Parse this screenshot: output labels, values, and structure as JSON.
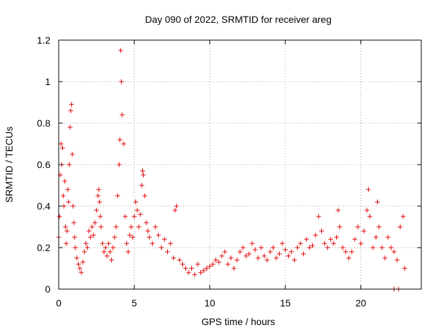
{
  "chart_data": {
    "type": "scatter",
    "title": "Day 090 of 2022, SRMTID for receiver areg",
    "xlabel": "GPS time / hours",
    "ylabel": "SRMTID / TECUs",
    "xlim": [
      0,
      24
    ],
    "ylim": [
      0,
      1.2
    ],
    "grid": true,
    "x_ticks": [
      0,
      5,
      10,
      15,
      20
    ],
    "x_tick_labels": [
      "0",
      "5",
      "10",
      "15",
      "20"
    ],
    "y_ticks": [
      0,
      0.2,
      0.4,
      0.6,
      0.8,
      1.0,
      1.2
    ],
    "y_tick_labels": [
      "0",
      "0.2",
      "0.4",
      "0.6",
      "0.8",
      "1",
      "1.2"
    ],
    "marker": "plus",
    "color": "#e00000",
    "series": [
      {
        "name": "SRMTID",
        "x": [
          0.0,
          0.05,
          0.1,
          0.15,
          0.2,
          0.25,
          0.3,
          0.35,
          0.4,
          0.45,
          0.5,
          0.55,
          0.6,
          0.65,
          0.7,
          0.75,
          0.8,
          0.85,
          0.9,
          0.95,
          1.0,
          1.05,
          1.1,
          1.2,
          1.3,
          1.4,
          1.5,
          1.6,
          1.7,
          1.8,
          1.9,
          2.0,
          2.1,
          2.2,
          2.3,
          2.4,
          2.5,
          2.6,
          2.65,
          2.7,
          2.75,
          2.8,
          2.9,
          3.0,
          3.1,
          3.2,
          3.3,
          3.4,
          3.5,
          3.6,
          3.7,
          3.8,
          3.9,
          4.0,
          4.05,
          4.1,
          4.15,
          4.2,
          4.3,
          4.4,
          4.5,
          4.6,
          4.7,
          4.8,
          4.9,
          5.0,
          5.1,
          5.2,
          5.3,
          5.4,
          5.5,
          5.55,
          5.6,
          5.7,
          5.8,
          5.9,
          6.0,
          6.2,
          6.4,
          6.6,
          6.8,
          7.0,
          7.2,
          7.4,
          7.6,
          7.7,
          7.8,
          8.0,
          8.2,
          8.4,
          8.6,
          8.8,
          9.0,
          9.2,
          9.4,
          9.6,
          9.8,
          10.0,
          10.2,
          10.4,
          10.6,
          10.8,
          11.0,
          11.2,
          11.4,
          11.6,
          11.8,
          12.0,
          12.2,
          12.4,
          12.6,
          12.8,
          13.0,
          13.2,
          13.4,
          13.6,
          13.8,
          14.0,
          14.2,
          14.4,
          14.6,
          14.8,
          15.0,
          15.2,
          15.4,
          15.6,
          15.8,
          16.0,
          16.2,
          16.4,
          16.6,
          16.8,
          17.0,
          17.2,
          17.4,
          17.6,
          17.8,
          18.0,
          18.2,
          18.4,
          18.5,
          18.6,
          18.8,
          19.0,
          19.2,
          19.4,
          19.6,
          19.8,
          20.0,
          20.2,
          20.4,
          20.5,
          20.6,
          20.8,
          21.0,
          21.1,
          21.2,
          21.4,
          21.6,
          21.8,
          22.0,
          22.2,
          22.4,
          22.6,
          22.8,
          22.9,
          22.2,
          22.5
        ],
        "y": [
          0.25,
          0.35,
          0.55,
          0.7,
          0.6,
          0.68,
          0.45,
          0.4,
          0.52,
          0.3,
          0.22,
          0.28,
          0.48,
          0.42,
          0.6,
          0.78,
          0.86,
          0.89,
          0.65,
          0.4,
          0.32,
          0.25,
          0.2,
          0.15,
          0.12,
          0.1,
          0.08,
          0.13,
          0.18,
          0.22,
          0.2,
          0.28,
          0.25,
          0.3,
          0.26,
          0.32,
          0.38,
          0.45,
          0.48,
          0.42,
          0.35,
          0.3,
          0.22,
          0.18,
          0.2,
          0.16,
          0.22,
          0.18,
          0.14,
          0.2,
          0.25,
          0.3,
          0.45,
          0.6,
          0.72,
          1.15,
          1.0,
          0.84,
          0.7,
          0.35,
          0.22,
          0.18,
          0.26,
          0.3,
          0.25,
          0.35,
          0.42,
          0.38,
          0.3,
          0.36,
          0.5,
          0.57,
          0.55,
          0.45,
          0.32,
          0.28,
          0.25,
          0.22,
          0.3,
          0.26,
          0.2,
          0.24,
          0.18,
          0.22,
          0.15,
          0.38,
          0.4,
          0.14,
          0.12,
          0.1,
          0.08,
          0.1,
          0.07,
          0.12,
          0.08,
          0.09,
          0.1,
          0.11,
          0.12,
          0.14,
          0.13,
          0.16,
          0.18,
          0.12,
          0.15,
          0.1,
          0.14,
          0.18,
          0.2,
          0.16,
          0.17,
          0.22,
          0.19,
          0.15,
          0.2,
          0.16,
          0.14,
          0.18,
          0.2,
          0.15,
          0.17,
          0.22,
          0.19,
          0.16,
          0.18,
          0.14,
          0.2,
          0.22,
          0.17,
          0.24,
          0.2,
          0.21,
          0.26,
          0.35,
          0.28,
          0.22,
          0.2,
          0.24,
          0.22,
          0.25,
          0.38,
          0.3,
          0.2,
          0.18,
          0.15,
          0.18,
          0.24,
          0.3,
          0.22,
          0.28,
          0.38,
          0.48,
          0.35,
          0.2,
          0.25,
          0.42,
          0.3,
          0.2,
          0.15,
          0.25,
          0.2,
          0.18,
          0.14,
          0.3,
          0.35,
          0.1,
          0.0,
          0.0
        ]
      }
    ]
  }
}
